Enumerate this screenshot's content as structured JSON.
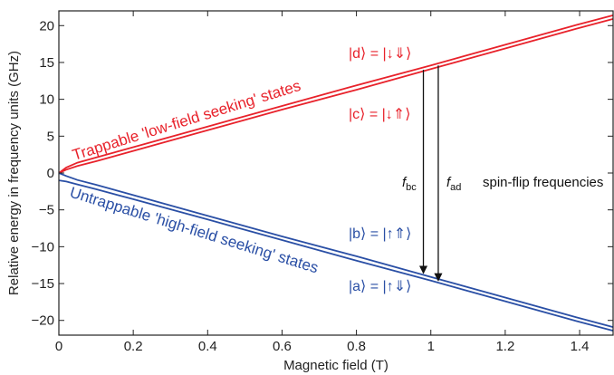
{
  "chart_data": {
    "type": "line",
    "xlabel": "Magnetic field (T)",
    "ylabel": "Relative energy in frequency units (GHz)",
    "xlim": [
      0,
      1.49
    ],
    "ylim": [
      -22,
      22
    ],
    "x_ticks": [
      0,
      0.2,
      0.4,
      0.6,
      0.8,
      1.0,
      1.2,
      1.4
    ],
    "x_tick_labels": [
      "0",
      "0.2",
      "0.4",
      "0.6",
      "0.8",
      "1",
      "1.2",
      "1.4"
    ],
    "y_ticks": [
      -20,
      -15,
      -10,
      -5,
      0,
      5,
      10,
      15,
      20
    ],
    "y_tick_labels": [
      "−20",
      "−15",
      "−10",
      "−5",
      "0",
      "5",
      "10",
      "15",
      "20"
    ],
    "grid": false,
    "colors": {
      "upper": "#e8222b",
      "lower": "#2a4fa5",
      "arrow": "#111111"
    },
    "series": [
      {
        "name": "|d⟩ = |↓⇓⟩",
        "color": "#e8222b",
        "x": [
          0,
          0.02,
          0.05,
          0.1,
          0.2,
          0.4,
          0.6,
          0.8,
          1.0,
          1.2,
          1.4,
          1.49
        ],
        "y": [
          0.0,
          0.75,
          1.4,
          2.1,
          3.5,
          6.3,
          9.1,
          11.9,
          14.6,
          17.4,
          20.2,
          21.4
        ]
      },
      {
        "name": "|c⟩ = |↓⇑⟩",
        "color": "#e8222b",
        "x": [
          0,
          0.02,
          0.05,
          0.1,
          0.2,
          0.4,
          0.6,
          0.8,
          1.0,
          1.2,
          1.4,
          1.49
        ],
        "y": [
          0.0,
          0.45,
          0.95,
          1.6,
          3.0,
          5.8,
          8.6,
          11.3,
          14.1,
          16.9,
          19.7,
          20.9
        ]
      },
      {
        "name": "|b⟩ = |↑⇑⟩",
        "color": "#2a4fa5",
        "x": [
          0,
          0.02,
          0.05,
          0.1,
          0.2,
          0.4,
          0.6,
          0.8,
          1.0,
          1.2,
          1.4,
          1.49
        ],
        "y": [
          0.0,
          -0.4,
          -0.95,
          -1.6,
          -3.0,
          -5.8,
          -8.6,
          -11.3,
          -14.1,
          -16.9,
          -19.7,
          -20.9
        ]
      },
      {
        "name": "|a⟩ = |↑⇓⟩",
        "color": "#2a4fa5",
        "x": [
          0,
          0.02,
          0.05,
          0.1,
          0.2,
          0.4,
          0.6,
          0.8,
          1.0,
          1.2,
          1.4,
          1.49
        ],
        "y": [
          -1.0,
          -1.15,
          -1.55,
          -2.2,
          -3.55,
          -6.3,
          -9.1,
          -11.9,
          -14.6,
          -17.4,
          -20.2,
          -21.4
        ]
      }
    ],
    "annotations": {
      "upper_group": "Trappable 'low-field seeking' states",
      "lower_group": "Untrappable 'high-field seeking' states",
      "state_d": "|d⟩ = |↓⇓⟩",
      "state_c": "|c⟩ = |↓⇑⟩",
      "state_b": "|b⟩ = |↑⇑⟩",
      "state_a": "|a⟩ = |↑⇓⟩",
      "f_bc": {
        "label": "f",
        "subscript": "bc",
        "x": 0.98,
        "from": 14.0,
        "to": -13.6
      },
      "f_ad": {
        "label": "f",
        "subscript": "ad",
        "x": 1.02,
        "from": 14.6,
        "to": -14.6
      },
      "freq_text": "spin-flip frequencies"
    }
  }
}
